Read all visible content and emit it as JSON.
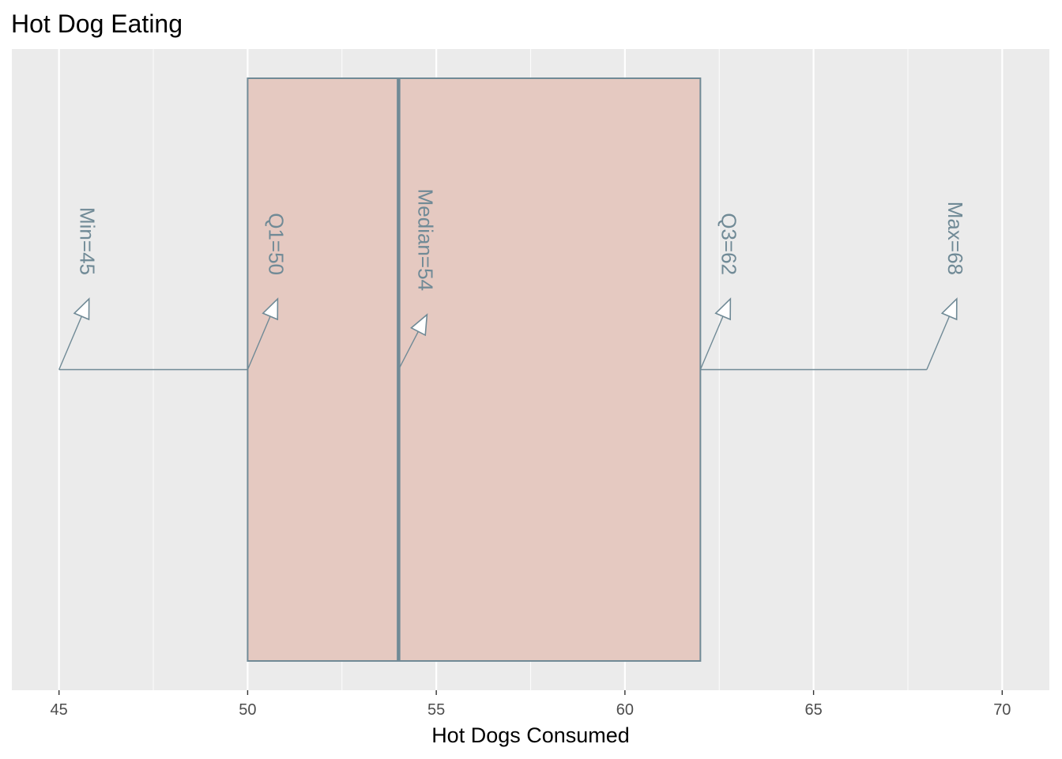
{
  "chart_data": {
    "type": "boxplot",
    "title": "Hot Dog Eating",
    "xlabel": "Hot Dogs Consumed",
    "ylabel": "",
    "xlim": [
      43.75,
      71.25
    ],
    "x_ticks": [
      45,
      50,
      55,
      60,
      65,
      70
    ],
    "grid": true,
    "stats": {
      "min": 45,
      "q1": 50,
      "median": 54,
      "q3": 62,
      "max": 68
    },
    "annotations": [
      {
        "key": "min",
        "label": "Min=45",
        "value": 45
      },
      {
        "key": "q1",
        "label": "Q1=50",
        "value": 50
      },
      {
        "key": "median",
        "label": "Median=54",
        "value": 54
      },
      {
        "key": "q3",
        "label": "Q3=62",
        "value": 62
      },
      {
        "key": "max",
        "label": "Max=68",
        "value": 68
      }
    ],
    "colors": {
      "panel": "#EBEBEB",
      "grid": "#FFFFFF",
      "box_fill": "#E5C9C1",
      "box_line": "#708A96",
      "annotation": "#708A96"
    }
  }
}
